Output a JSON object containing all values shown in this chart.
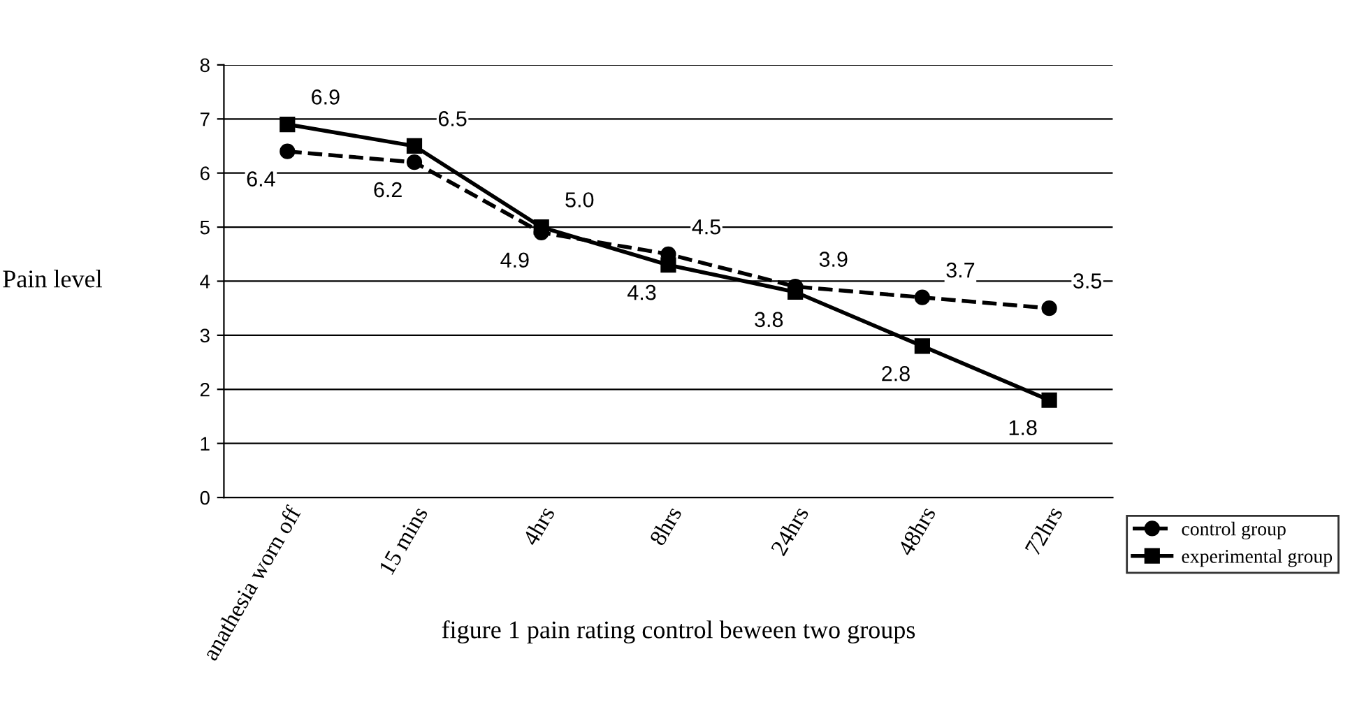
{
  "chart_data": {
    "type": "line",
    "categories": [
      "anathesia worn off",
      "15 mins",
      "4hrs",
      "8hrs",
      "24hrs",
      "48hrs",
      "72hrs"
    ],
    "series": [
      {
        "name": "control group",
        "color": "#000000",
        "marker": "circle",
        "line_style": "dashed",
        "values": [
          6.4,
          6.2,
          4.9,
          4.5,
          3.9,
          3.7,
          3.5
        ],
        "value_labels": [
          "6.4",
          "6.2",
          "4.9",
          "4.5",
          "3.9",
          "3.7",
          "3.5"
        ]
      },
      {
        "name": "experimental group",
        "color": "#000000",
        "marker": "square",
        "line_style": "solid",
        "values": [
          6.9,
          6.5,
          5.0,
          4.3,
          3.8,
          2.8,
          1.8
        ],
        "value_labels": [
          "6.9",
          "6.5",
          "5.0",
          "4.3",
          "3.8",
          "2.8",
          "1.8"
        ]
      }
    ],
    "ylabel": "Pain level",
    "xlabel": "figure 1 pain rating control beween two groups",
    "ylim": [
      0,
      8
    ],
    "yticks": [
      0,
      1,
      2,
      3,
      4,
      5,
      6,
      7,
      8
    ],
    "grid": "y",
    "legend": "bottom right"
  }
}
